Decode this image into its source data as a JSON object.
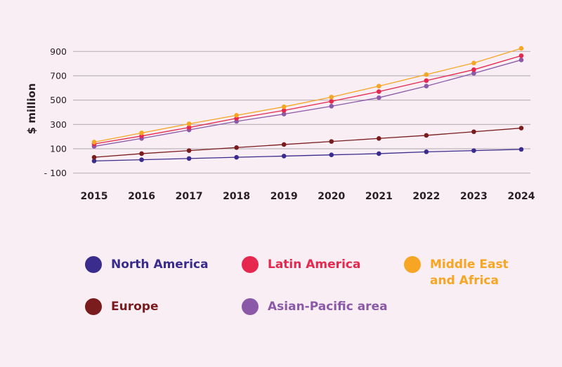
{
  "chart_data": {
    "type": "line",
    "title": "",
    "xlabel": "",
    "ylabel": "$ million",
    "ylim": [
      -100,
      900
    ],
    "yticks": [
      900,
      700,
      500,
      300,
      100,
      -100
    ],
    "ytick_labels": [
      "900",
      "700",
      "500",
      "300",
      "100",
      "- 100"
    ],
    "grid": true,
    "legend_position": "bottom",
    "x": [
      "2015",
      "2016",
      "2017",
      "2018",
      "2019",
      "2020",
      "2021",
      "2022",
      "2023",
      "2024"
    ],
    "series": [
      {
        "name": "North America",
        "color": "#3a2c8c",
        "values": [
          0,
          10,
          20,
          30,
          40,
          50,
          60,
          75,
          85,
          95
        ]
      },
      {
        "name": "Latin America",
        "color": "#e6284e",
        "values": [
          140,
          205,
          275,
          350,
          415,
          490,
          570,
          660,
          750,
          865
        ]
      },
      {
        "name": "Middle East\nand Africa",
        "color": "#f6a623",
        "values": [
          155,
          230,
          305,
          375,
          445,
          525,
          615,
          710,
          805,
          925
        ]
      },
      {
        "name": "Europe",
        "color": "#7a1c1e",
        "values": [
          30,
          60,
          85,
          110,
          135,
          160,
          185,
          210,
          240,
          270
        ]
      },
      {
        "name": "Asian-Pacific area",
        "color": "#8b59a8",
        "values": [
          120,
          185,
          255,
          325,
          385,
          450,
          520,
          615,
          720,
          830
        ]
      }
    ]
  }
}
